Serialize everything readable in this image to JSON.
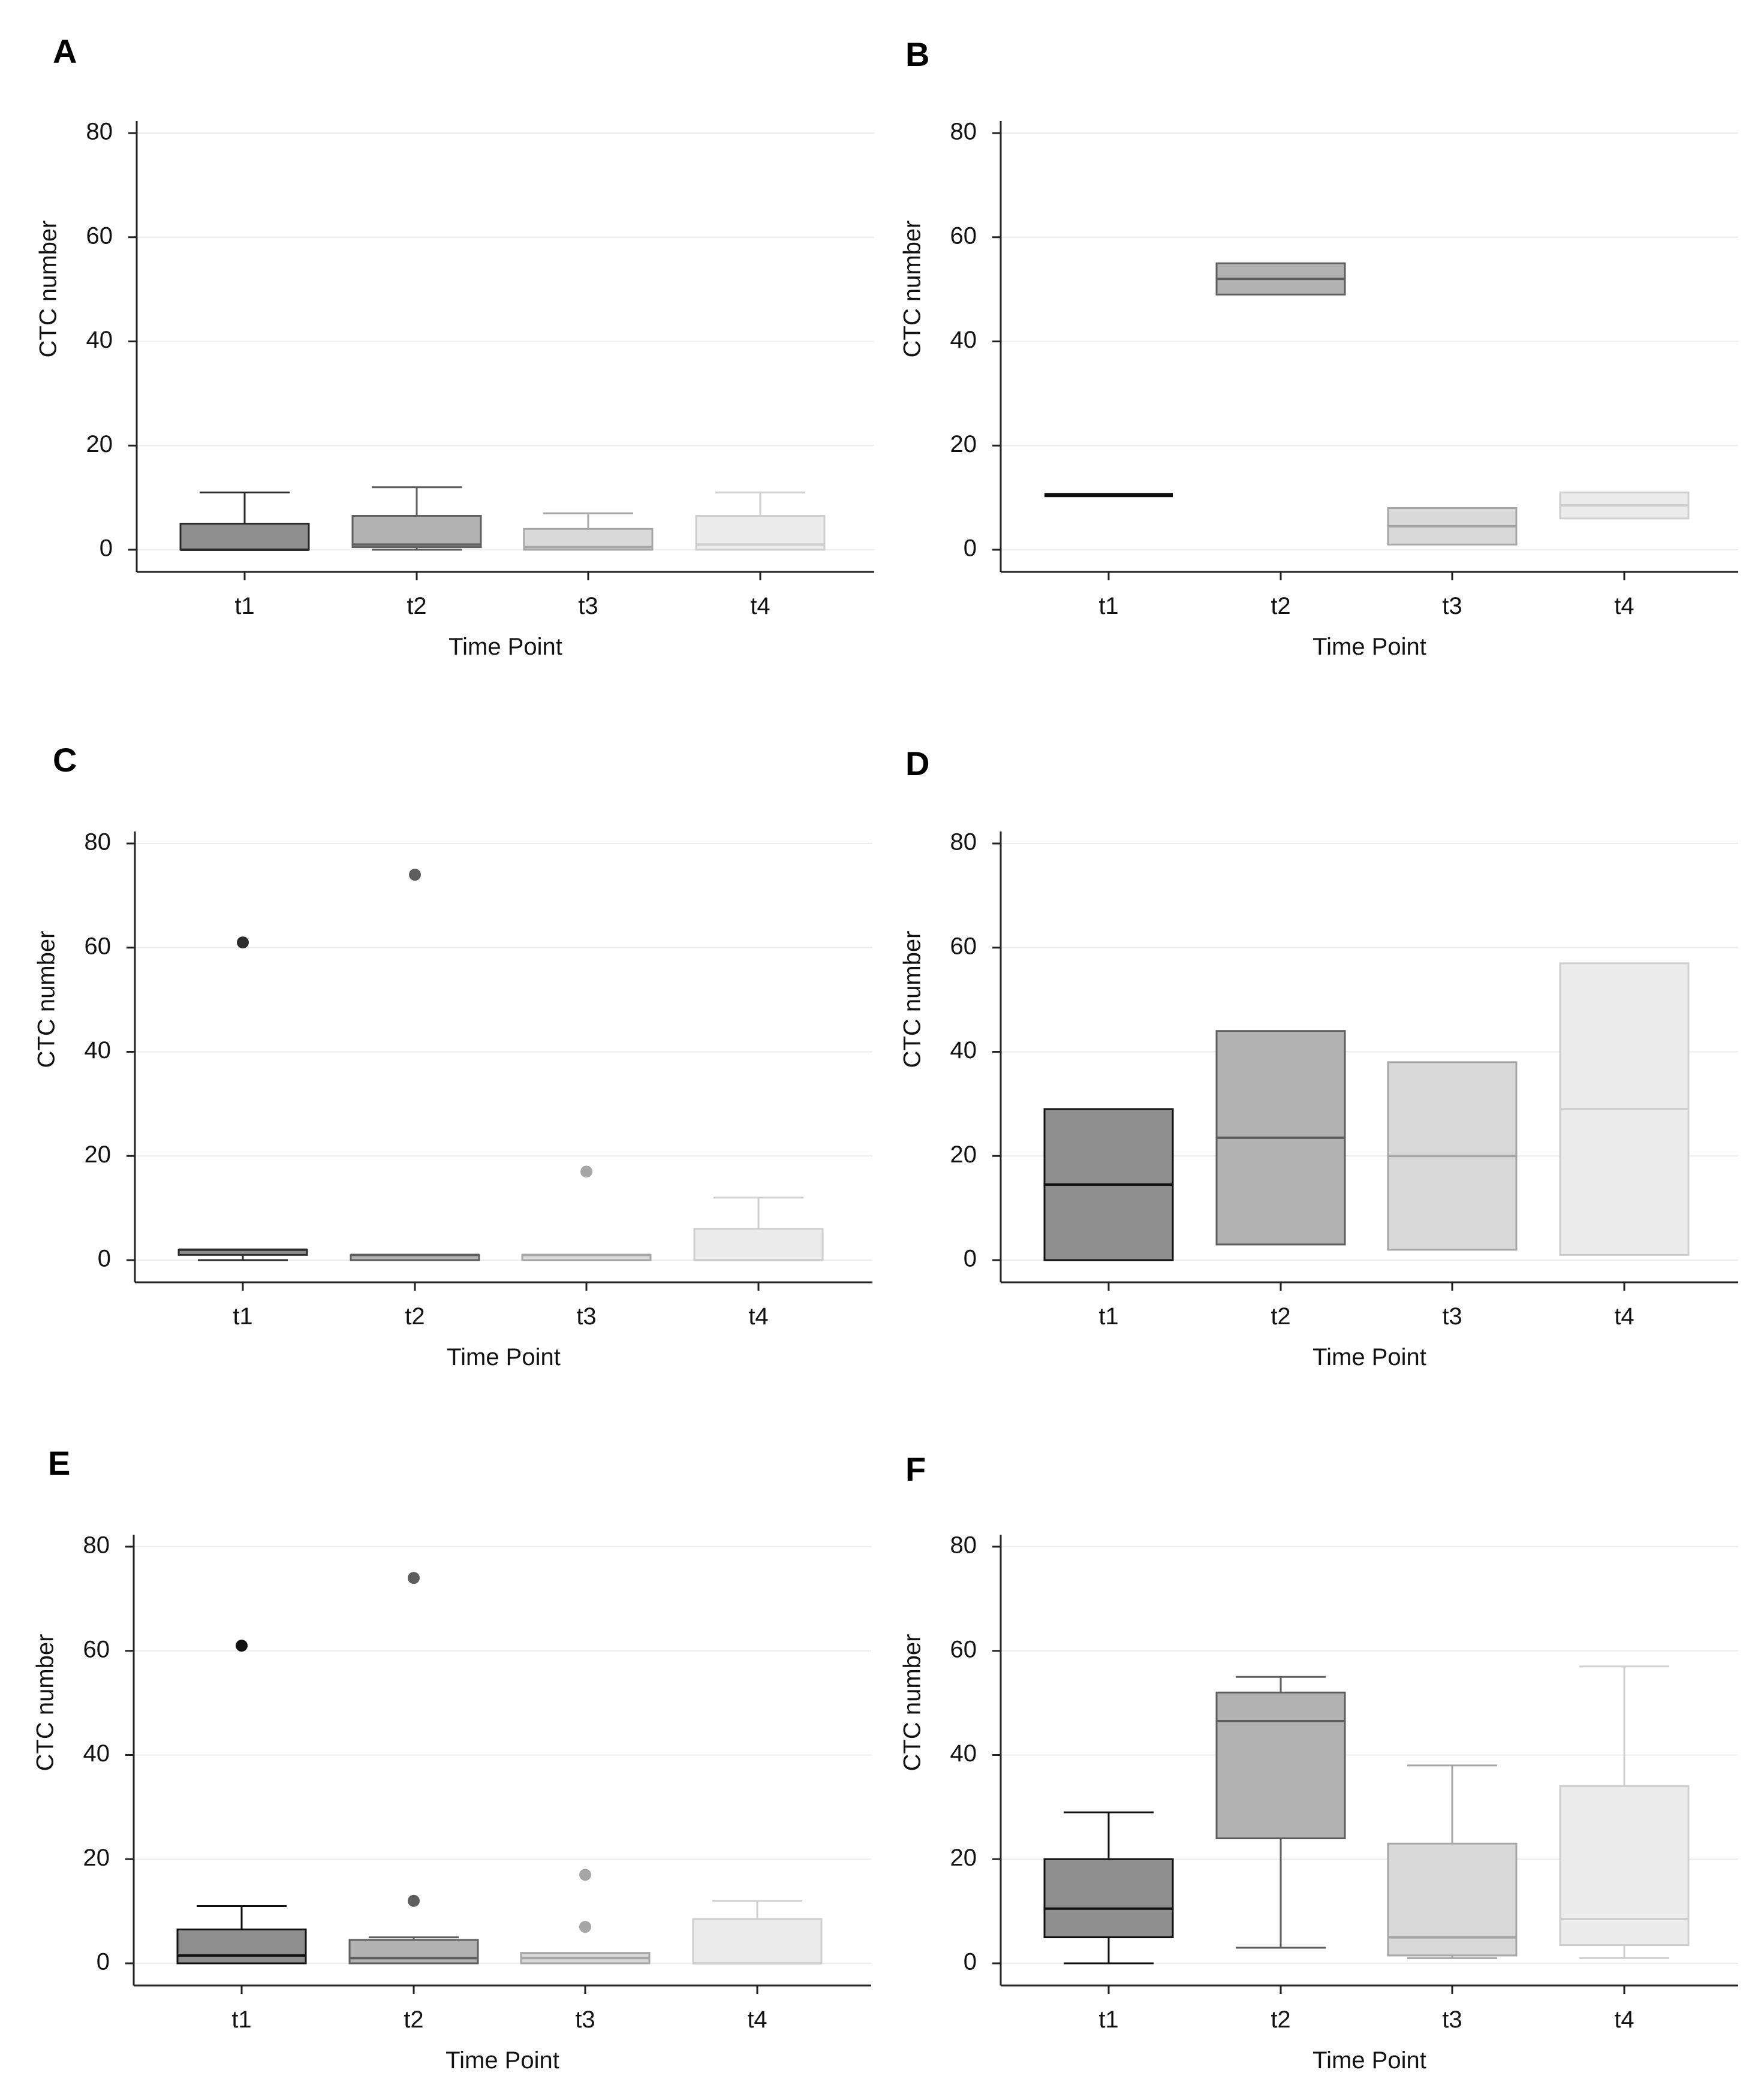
{
  "chart_data": [
    {
      "panel": "A",
      "type": "box",
      "xlabel": "Time Point",
      "ylabel": "CTC number",
      "ylim": [
        -4,
        82
      ],
      "yticks": [
        0,
        20,
        40,
        60,
        80
      ],
      "categories": [
        "t1",
        "t2",
        "t3",
        "t4"
      ],
      "boxes": [
        {
          "name": "t1",
          "q1": 0,
          "median": 0,
          "q3": 5,
          "whisker_low": 0,
          "whisker_high": 11,
          "outliers": [],
          "fill": "#8e8e8e",
          "stroke": "#2b2b2b"
        },
        {
          "name": "t2",
          "q1": 0.5,
          "median": 1,
          "q3": 6.5,
          "whisker_low": 0,
          "whisker_high": 12,
          "outliers": [],
          "fill": "#b3b3b3",
          "stroke": "#5e5e5e"
        },
        {
          "name": "t3",
          "q1": 0,
          "median": 0.5,
          "q3": 4,
          "whisker_low": 0,
          "whisker_high": 7,
          "outliers": [],
          "fill": "#d9d9d9",
          "stroke": "#a6a6a6"
        },
        {
          "name": "t4",
          "q1": 0,
          "median": 1,
          "q3": 6.5,
          "whisker_low": 0,
          "whisker_high": 11,
          "outliers": [],
          "fill": "#ececec",
          "stroke": "#cfcfcf"
        }
      ]
    },
    {
      "panel": "B",
      "type": "box",
      "xlabel": "Time Point",
      "ylabel": "CTC number",
      "ylim": [
        -4,
        82
      ],
      "yticks": [
        0,
        20,
        40,
        60,
        80
      ],
      "categories": [
        "t1",
        "t2",
        "t3",
        "t4"
      ],
      "boxes": [
        {
          "name": "t1",
          "q1": 10.5,
          "median": 10.5,
          "q3": 10.5,
          "whisker_low": 10.5,
          "whisker_high": 10.5,
          "outliers": [],
          "fill": "#8e8e8e",
          "stroke": "#111111"
        },
        {
          "name": "t2",
          "q1": 49,
          "median": 52,
          "q3": 55,
          "whisker_low": 49,
          "whisker_high": 55,
          "outliers": [],
          "fill": "#b3b3b3",
          "stroke": "#5e5e5e"
        },
        {
          "name": "t3",
          "q1": 1,
          "median": 4.5,
          "q3": 8,
          "whisker_low": 1,
          "whisker_high": 8,
          "outliers": [],
          "fill": "#d9d9d9",
          "stroke": "#a6a6a6"
        },
        {
          "name": "t4",
          "q1": 6,
          "median": 8.5,
          "q3": 11,
          "whisker_low": 6,
          "whisker_high": 11,
          "outliers": [],
          "fill": "#ececec",
          "stroke": "#cfcfcf"
        }
      ]
    },
    {
      "panel": "C",
      "type": "box",
      "xlabel": "Time Point",
      "ylabel": "CTC number",
      "ylim": [
        -4,
        82
      ],
      "yticks": [
        0,
        20,
        40,
        60,
        80
      ],
      "categories": [
        "t1",
        "t2",
        "t3",
        "t4"
      ],
      "boxes": [
        {
          "name": "t1",
          "q1": 1,
          "median": 2,
          "q3": 2,
          "whisker_low": 0,
          "whisker_high": 2,
          "outliers": [
            61
          ],
          "fill": "#8e8e8e",
          "stroke": "#2b2b2b"
        },
        {
          "name": "t2",
          "q1": 0,
          "median": 1,
          "q3": 1,
          "whisker_low": 0,
          "whisker_high": 1,
          "outliers": [
            74
          ],
          "fill": "#b3b3b3",
          "stroke": "#5e5e5e"
        },
        {
          "name": "t3",
          "q1": 0,
          "median": 1,
          "q3": 1,
          "whisker_low": 0,
          "whisker_high": 1,
          "outliers": [
            17
          ],
          "fill": "#d9d9d9",
          "stroke": "#a6a6a6"
        },
        {
          "name": "t4",
          "q1": 0,
          "median": 0,
          "q3": 6,
          "whisker_low": 0,
          "whisker_high": 12,
          "outliers": [],
          "fill": "#ececec",
          "stroke": "#cfcfcf"
        }
      ]
    },
    {
      "panel": "D",
      "type": "box",
      "xlabel": "Time Point",
      "ylabel": "CTC number",
      "ylim": [
        -4,
        82
      ],
      "yticks": [
        0,
        20,
        40,
        60,
        80
      ],
      "categories": [
        "t1",
        "t2",
        "t3",
        "t4"
      ],
      "boxes": [
        {
          "name": "t1",
          "q1": 0,
          "median": 14.5,
          "q3": 29,
          "whisker_low": 0,
          "whisker_high": 29,
          "outliers": [],
          "fill": "#8e8e8e",
          "stroke": "#111111"
        },
        {
          "name": "t2",
          "q1": 3,
          "median": 23.5,
          "q3": 44,
          "whisker_low": 3,
          "whisker_high": 44,
          "outliers": [],
          "fill": "#b3b3b3",
          "stroke": "#5e5e5e"
        },
        {
          "name": "t3",
          "q1": 2,
          "median": 20,
          "q3": 38,
          "whisker_low": 2,
          "whisker_high": 38,
          "outliers": [],
          "fill": "#d9d9d9",
          "stroke": "#a6a6a6"
        },
        {
          "name": "t4",
          "q1": 1,
          "median": 29,
          "q3": 57,
          "whisker_low": 1,
          "whisker_high": 57,
          "outliers": [],
          "fill": "#ececec",
          "stroke": "#cfcfcf"
        }
      ]
    },
    {
      "panel": "E",
      "type": "box",
      "xlabel": "Time Point",
      "ylabel": "CTC number",
      "ylim": [
        -4,
        82
      ],
      "yticks": [
        0,
        20,
        40,
        60,
        80
      ],
      "categories": [
        "t1",
        "t2",
        "t3",
        "t4"
      ],
      "boxes": [
        {
          "name": "t1",
          "q1": 0,
          "median": 1.5,
          "q3": 6.5,
          "whisker_low": 0,
          "whisker_high": 11,
          "outliers": [
            61
          ],
          "fill": "#8e8e8e",
          "stroke": "#111111"
        },
        {
          "name": "t2",
          "q1": 0,
          "median": 1,
          "q3": 4.5,
          "whisker_low": 0,
          "whisker_high": 5,
          "outliers": [
            74,
            12
          ],
          "fill": "#b3b3b3",
          "stroke": "#5e5e5e"
        },
        {
          "name": "t3",
          "q1": 0,
          "median": 1,
          "q3": 2,
          "whisker_low": 0,
          "whisker_high": 2,
          "outliers": [
            17,
            7
          ],
          "fill": "#d9d9d9",
          "stroke": "#a6a6a6"
        },
        {
          "name": "t4",
          "q1": 0,
          "median": 0,
          "q3": 8.5,
          "whisker_low": 0,
          "whisker_high": 12,
          "outliers": [],
          "fill": "#ececec",
          "stroke": "#cfcfcf"
        }
      ]
    },
    {
      "panel": "F",
      "type": "box",
      "xlabel": "Time Point",
      "ylabel": "CTC number",
      "ylim": [
        -4,
        82
      ],
      "yticks": [
        0,
        20,
        40,
        60,
        80
      ],
      "categories": [
        "t1",
        "t2",
        "t3",
        "t4"
      ],
      "boxes": [
        {
          "name": "t1",
          "q1": 5,
          "median": 10.5,
          "q3": 20,
          "whisker_low": 0,
          "whisker_high": 29,
          "outliers": [],
          "fill": "#8e8e8e",
          "stroke": "#111111"
        },
        {
          "name": "t2",
          "q1": 24,
          "median": 46.5,
          "q3": 52,
          "whisker_low": 3,
          "whisker_high": 55,
          "outliers": [],
          "fill": "#b3b3b3",
          "stroke": "#5e5e5e"
        },
        {
          "name": "t3",
          "q1": 1.5,
          "median": 5,
          "q3": 23,
          "whisker_low": 1,
          "whisker_high": 38,
          "outliers": [],
          "fill": "#d9d9d9",
          "stroke": "#a6a6a6"
        },
        {
          "name": "t4",
          "q1": 3.5,
          "median": 8.5,
          "q3": 34,
          "whisker_low": 1,
          "whisker_high": 57,
          "outliers": [],
          "fill": "#ececec",
          "stroke": "#cfcfcf"
        }
      ]
    }
  ]
}
